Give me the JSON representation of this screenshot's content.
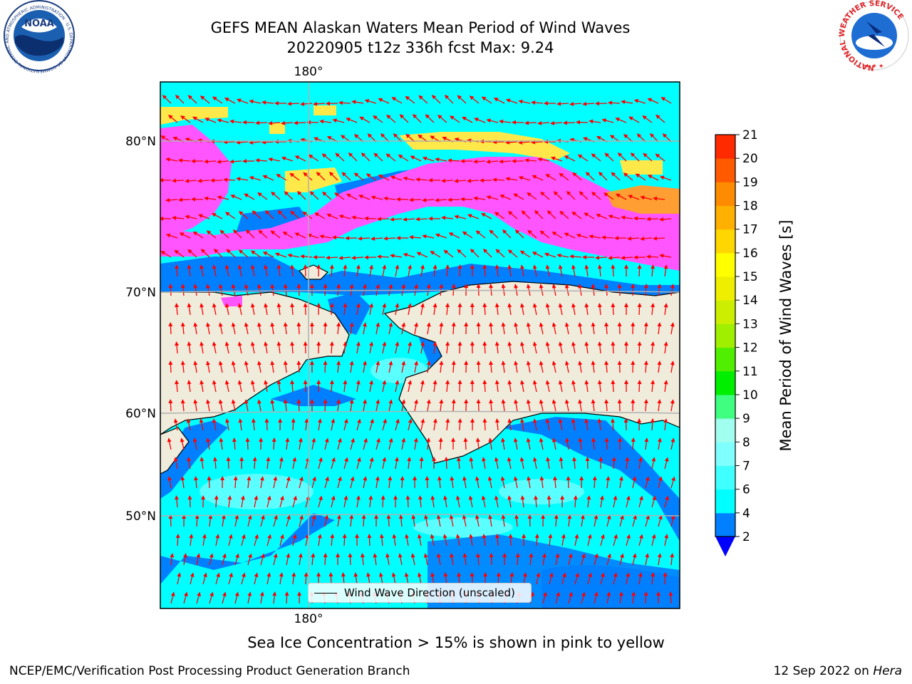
{
  "header": {
    "title_line1": "GEFS MEAN Alaskan Waters Mean Period of Wind Waves",
    "title_line2": "20220905 t12z 336h fcst   Max: 9.24"
  },
  "logos": {
    "noaa_text": "NOAA",
    "noaa_ring_text": "NATIONAL OCEANIC AND ATMOSPHERIC ADMINISTRATION · U.S. DEPARTMENT OF COMMERCE",
    "nws_ring_text": "NATIONAL WEATHER SERVICE"
  },
  "map": {
    "lon_label_top": "180°",
    "lon_label_bottom": "180°",
    "lat_labels": [
      "80°N",
      "70°N",
      "60°N",
      "50°N"
    ],
    "legend_label": "Wind Wave Direction (unscaled)",
    "colors": {
      "ocean_cyan": "#00ffff",
      "ocean_blue": "#0080ff",
      "light_cyan": "#80ffff",
      "land": "#efecdc",
      "ice_pink": "#ff55ff",
      "ice_yellow": "#ffe84a",
      "arrow": "#ff0000",
      "grid": "#b0b0b0"
    }
  },
  "colorbar": {
    "label": "Mean Period of Wind Waves [s]",
    "ticks": [
      "2",
      "4",
      "6",
      "7",
      "8",
      "9",
      "10",
      "11",
      "12",
      "13",
      "14",
      "15",
      "16",
      "17",
      "18",
      "19",
      "20",
      "21"
    ],
    "bin_colors": [
      "#0080ff",
      "#00ffff",
      "#40ffff",
      "#80ffff",
      "#a0ffee",
      "#40ff80",
      "#00ee00",
      "#50ee00",
      "#a0ee00",
      "#ccee00",
      "#eeee00",
      "#ffff00",
      "#ffd700",
      "#ffb000",
      "#ff8c00",
      "#ff5a00",
      "#ff2a00"
    ],
    "extend_color": "#0000ff"
  },
  "notes": {
    "ice_note": "Sea Ice Concentration > 15% is shown in pink to yellow",
    "footer_left": "NCEP/EMC/Verification Post Processing Product Generation Branch",
    "footer_date": "12 Sep 2022 on",
    "footer_host": "Hera"
  }
}
